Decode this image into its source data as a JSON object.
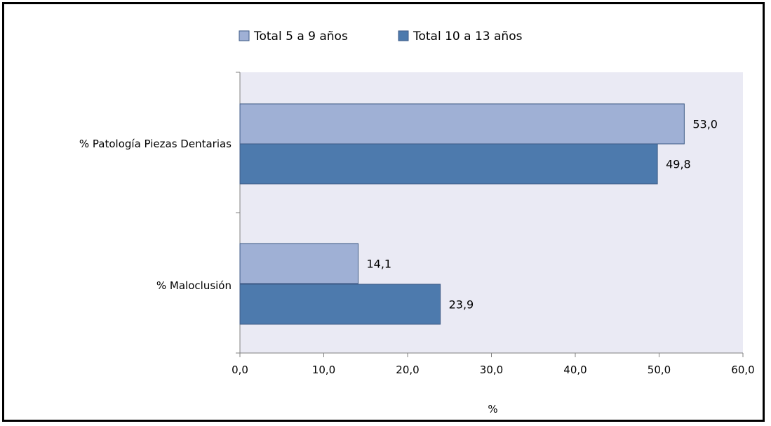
{
  "chart_data": {
    "type": "bar",
    "orientation": "horizontal",
    "categories": [
      "% Patología Piezas Dentarias",
      "% Maloclusión"
    ],
    "series": [
      {
        "name": "Total 5 a 9 años",
        "values": [
          53.0,
          14.1
        ],
        "value_labels": [
          "53,0",
          "14,1"
        ],
        "color": "#9fb0d5"
      },
      {
        "name": "Total 10 a 13 años",
        "values": [
          49.8,
          23.9
        ],
        "value_labels": [
          "49,8",
          "23,9"
        ],
        "color": "#4d7aad"
      }
    ],
    "xlabel": "%",
    "xlim": [
      0,
      60
    ],
    "xticks": [
      0,
      10,
      20,
      30,
      40,
      50,
      60
    ],
    "xtick_labels": [
      "0,0",
      "10,0",
      "20,0",
      "30,0",
      "40,0",
      "50,0",
      "60,0"
    ],
    "legend_position": "top",
    "plot_background": "#eaeaf4",
    "grid": false
  }
}
